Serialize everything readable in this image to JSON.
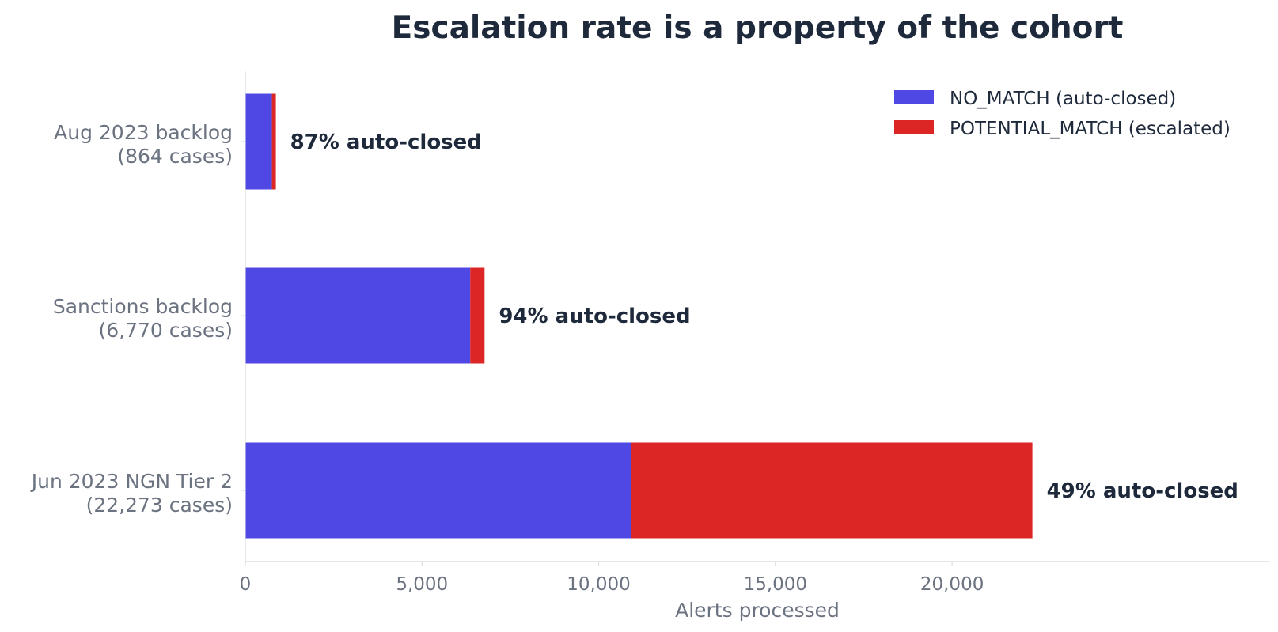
{
  "chart_data": {
    "type": "bar",
    "orientation": "horizontal",
    "stacked": true,
    "title": "Escalation rate is a property of the cohort",
    "xlabel": "Alerts processed",
    "ylabel": "",
    "categories": [
      [
        "Aug 2023 backlog",
        "(864 cases)"
      ],
      [
        "Sanctions backlog",
        "(6,770 cases)"
      ],
      [
        "Jun 2023 NGN Tier 2",
        "(22,273 cases)"
      ]
    ],
    "series": [
      {
        "name": "NO_MATCH (auto-closed)",
        "color": "#5048e5",
        "values": [
          752,
          6364,
          10914
        ]
      },
      {
        "name": "POTENTIAL_MATCH (escalated)",
        "color": "#dc2626",
        "values": [
          112,
          406,
          11359
        ]
      }
    ],
    "data_labels": [
      "87% auto-closed",
      "94% auto-closed",
      "49% auto-closed"
    ],
    "xlim": [
      0,
      29000
    ],
    "xticks": [
      0,
      5000,
      10000,
      15000,
      20000
    ],
    "xtick_labels": [
      "0",
      "5,000",
      "10,000",
      "15,000",
      "20,000"
    ],
    "grid": false,
    "legend_position": "top-right"
  }
}
